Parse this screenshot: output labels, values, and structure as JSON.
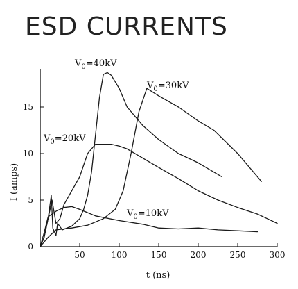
{
  "chart_data": {
    "type": "line",
    "title": "ESD CURRENTS",
    "xlabel": "t (ns)",
    "ylabel": "I (amps)",
    "xlim": [
      0,
      300
    ],
    "ylim": [
      0,
      19
    ],
    "xticks": [
      50,
      100,
      150,
      200,
      250,
      300
    ],
    "xtick_labels": [
      "50",
      "100",
      "150",
      "200",
      "250",
      "300"
    ],
    "yticks": [
      0,
      5,
      10,
      15
    ],
    "ytick_labels": [
      "0",
      "5",
      "10",
      "15"
    ],
    "grid": false,
    "legend": "none",
    "series": [
      {
        "name": "V0=40kV",
        "label_main": "V",
        "label_sub": "0",
        "label_rest": "=40kV",
        "x": [
          0,
          5,
          10,
          14,
          16,
          20,
          22,
          28,
          40,
          50,
          55,
          60,
          65,
          70,
          75,
          80,
          85,
          90,
          100,
          110,
          130,
          150,
          175,
          200,
          230
        ],
        "y": [
          0,
          1,
          3,
          5.5,
          2,
          1.2,
          2.5,
          1.8,
          2.2,
          3,
          4,
          5.5,
          8,
          12,
          16,
          18.5,
          18.7,
          18.4,
          17,
          15,
          13,
          11.5,
          10,
          9,
          7.5
        ]
      },
      {
        "name": "V0=30kV",
        "label_main": "V",
        "label_sub": "0",
        "label_rest": "=30kV",
        "x": [
          0,
          10,
          20,
          40,
          60,
          80,
          95,
          105,
          115,
          125,
          135,
          150,
          175,
          200,
          220,
          250,
          280
        ],
        "y": [
          0,
          1,
          1.8,
          2,
          2.3,
          3,
          4,
          6,
          10,
          14.5,
          17,
          16.2,
          15,
          13.5,
          12.5,
          10,
          7
        ]
      },
      {
        "name": "V0=20kV",
        "label_main": "V",
        "label_sub": "0",
        "label_rest": "=20kV",
        "x": [
          0,
          5,
          10,
          15,
          20,
          25,
          30,
          40,
          50,
          60,
          70,
          80,
          90,
          100,
          110,
          130,
          150,
          175,
          200,
          225,
          250,
          275,
          300
        ],
        "y": [
          0,
          1,
          3,
          5,
          2.5,
          3,
          4.5,
          6,
          7.5,
          10,
          11,
          11,
          11,
          10.8,
          10.5,
          9.5,
          8.5,
          7.3,
          6,
          5,
          4.2,
          3.5,
          2.5
        ]
      },
      {
        "name": "V0=10kV",
        "label_main": "V",
        "label_sub": "0",
        "label_rest": "=10kV",
        "x": [
          0,
          5,
          10,
          20,
          30,
          40,
          50,
          70,
          100,
          130,
          150,
          175,
          200,
          225,
          250,
          275
        ],
        "y": [
          0,
          1.5,
          3.2,
          3.8,
          4.2,
          4.3,
          4,
          3.3,
          2.8,
          2.4,
          2,
          1.9,
          2,
          1.8,
          1.7,
          1.6
        ]
      }
    ]
  }
}
